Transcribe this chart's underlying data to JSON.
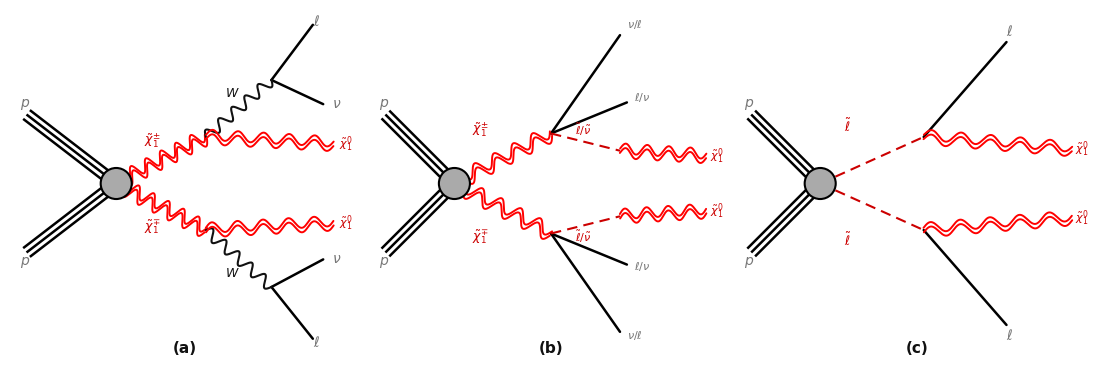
{
  "bg_color": "#ffffff",
  "red_color": "#cc0000",
  "black_color": "#111111",
  "gray_color": "#777777",
  "label_a": "(a)",
  "label_b": "(b)",
  "label_c": "(c)",
  "fig_width": 11.02,
  "fig_height": 3.67,
  "fs_label": 9,
  "fs_sub": 8,
  "fs_p": 10,
  "lw_beam": 1.8,
  "lw_solid": 1.8,
  "lw_wavy": 1.5,
  "lw_dashed": 1.5,
  "vertex_r": 0.045,
  "vertex_color": "#aaaaaa"
}
